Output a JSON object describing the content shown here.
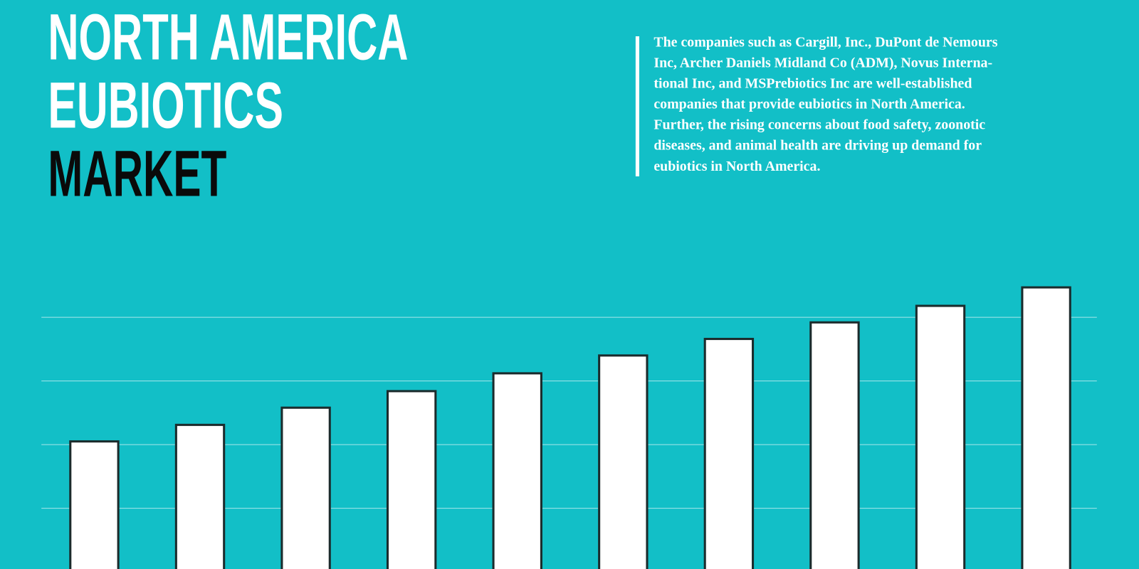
{
  "header": {
    "title_lines": [
      "NORTH AMERICA",
      "EUBIOTICS",
      "MARKET"
    ],
    "description_lines": [
      "The companies such as Cargill, Inc., DuPont de Nemours",
      "Inc, Archer Daniels Midland Co (ADM), Novus Interna-",
      "tional Inc, and MSPrebiotics Inc are well-established",
      "companies that provide eubiotics in North America.",
      "Further, the rising concerns about food safety, zoonotic",
      "diseases, and animal health are driving up demand for",
      "eubiotics in North America."
    ]
  },
  "chart_data": {
    "type": "bar",
    "categories": [
      null,
      null,
      null,
      null,
      null,
      null,
      null,
      null,
      null,
      null
    ],
    "values": [
      2.05,
      2.31,
      2.58,
      2.84,
      3.12,
      3.4,
      3.66,
      3.92,
      4.18,
      4.47
    ],
    "color": "#ffffff",
    "ylim": [
      0,
      5
    ],
    "yticks": [
      1,
      2,
      3,
      4
    ],
    "grid": true
  }
}
